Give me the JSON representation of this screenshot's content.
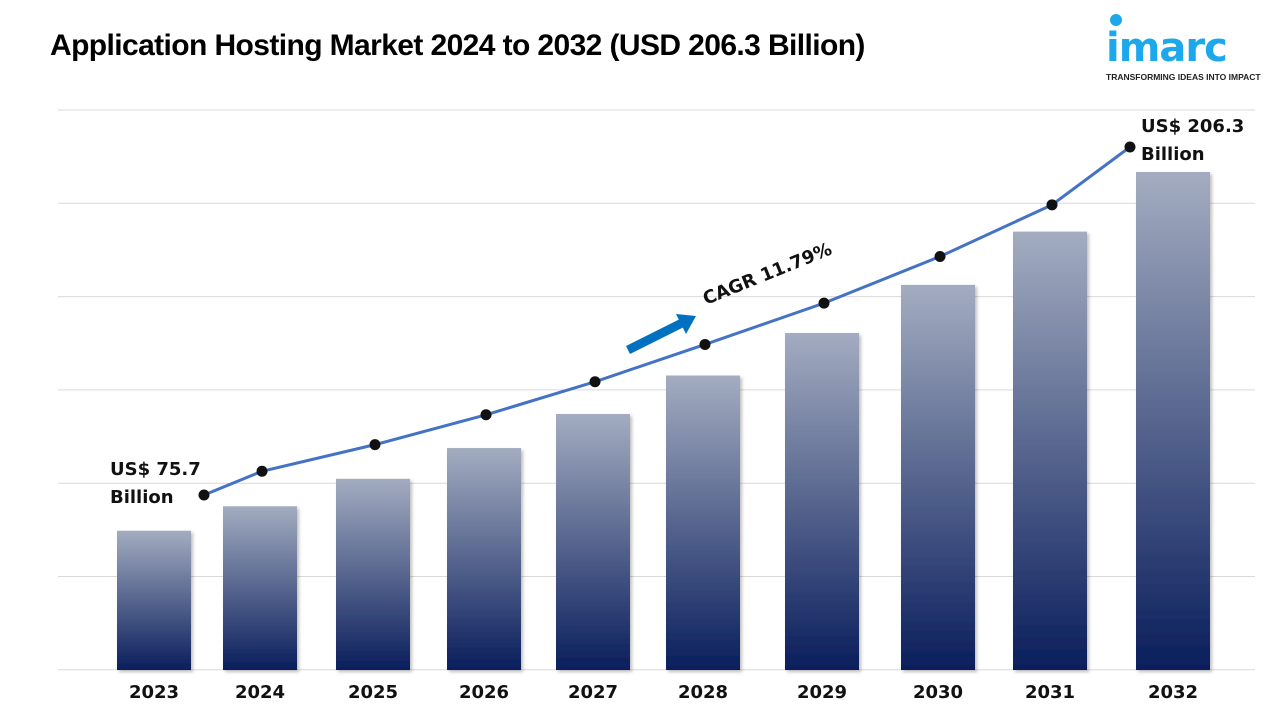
{
  "title": "Application Hosting Market 2024 to 2032 (USD 206.3 Billion)",
  "logo": {
    "text": "imarc",
    "tagline": "TRANSFORMING IDEAS INTO IMPACT"
  },
  "chart_data": {
    "type": "bar",
    "title": "Application Hosting Market 2024 to 2032 (USD 206.3 Billion)",
    "categories": [
      "2023",
      "2024",
      "2025",
      "2026",
      "2027",
      "2028",
      "2029",
      "2030",
      "2031",
      "2032"
    ],
    "values": [
      75.7,
      84.6,
      94.6,
      105.8,
      118.2,
      132.2,
      147.7,
      165.2,
      184.6,
      206.3
    ],
    "overlay_line": true,
    "ylim": [
      25,
      206.3
    ],
    "grid": true,
    "y_tick_labels_shown": false,
    "annotations": {
      "start_line1": "US$ 75.7",
      "start_line2": "Billion",
      "end_line1": "US$ 206.3",
      "end_line2": "Billion",
      "cagr": "CAGR 11.79%"
    },
    "colors": {
      "bar_top": "#a3acc0",
      "bar_bottom": "#0a1e5c",
      "line": "#4472c4",
      "marker": "#111111",
      "arrow": "#0070c0",
      "grid": "#d9d9d9"
    }
  }
}
